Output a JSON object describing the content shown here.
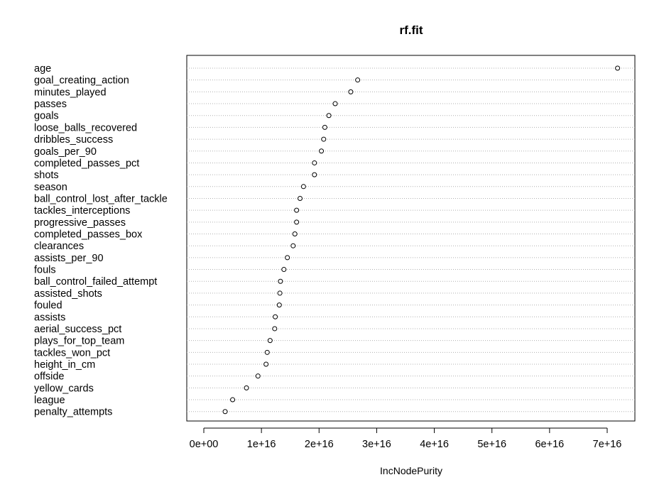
{
  "chart_data": {
    "type": "scatter",
    "subtype": "dotchart",
    "title": "rf.fit",
    "xlabel": "IncNodePurity",
    "ylabel": "",
    "xlim": [
      -3000000000000000.0,
      7.4e+16
    ],
    "xticks": [
      0,
      1e+16,
      2e+16,
      3e+16,
      4e+16,
      5e+16,
      6e+16,
      7e+16
    ],
    "xtick_labels": [
      "0e+00",
      "1e+16",
      "2e+16",
      "3e+16",
      "4e+16",
      "5e+16",
      "6e+16",
      "7e+16"
    ],
    "grid": "horizontal-dotted",
    "marker": "open-circle",
    "categories": [
      "age",
      "goal_creating_action",
      "minutes_played",
      "passes",
      "goals",
      "loose_balls_recovered",
      "dribbles_success",
      "goals_per_90",
      "completed_passes_pct",
      "shots",
      "season",
      "ball_control_lost_after_tackle",
      "tackles_interceptions",
      "progressive_passes",
      "completed_passes_box",
      "clearances",
      "assists_per_90",
      "fouls",
      "ball_control_failed_attempt",
      "assisted_shots",
      "fouled",
      "assists",
      "aerial_success_pct",
      "plays_for_top_team",
      "tackles_won_pct",
      "height_in_cm",
      "offside",
      "yellow_cards",
      "league",
      "penalty_attempts"
    ],
    "values": [
      7.18e+16,
      2.67e+16,
      2.55e+16,
      2.28e+16,
      2.17e+16,
      2.1e+16,
      2.08e+16,
      2.04e+16,
      1.92e+16,
      1.92e+16,
      1.73e+16,
      1.67e+16,
      1.61e+16,
      1.61e+16,
      1.58e+16,
      1.55e+16,
      1.45e+16,
      1.39e+16,
      1.33e+16,
      1.32e+16,
      1.31e+16,
      1.24e+16,
      1.23e+16,
      1.15e+16,
      1.1e+16,
      1.08e+16,
      9400000000000000.0,
      7400000000000000.0,
      5000000000000000.0,
      3700000000000000.0
    ]
  }
}
